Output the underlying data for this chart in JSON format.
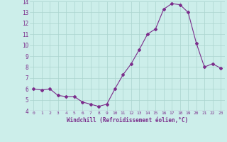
{
  "x": [
    0,
    1,
    2,
    3,
    4,
    5,
    6,
    7,
    8,
    9,
    10,
    11,
    12,
    13,
    14,
    15,
    16,
    17,
    18,
    19,
    20,
    21,
    22,
    23
  ],
  "y": [
    6.0,
    5.9,
    6.0,
    5.4,
    5.3,
    5.3,
    4.8,
    4.6,
    4.4,
    4.6,
    6.0,
    7.3,
    8.3,
    9.6,
    11.0,
    11.5,
    13.3,
    13.8,
    13.7,
    13.0,
    10.2,
    8.0,
    8.3,
    7.9
  ],
  "line_color": "#7B2D8B",
  "marker": "D",
  "marker_size": 2,
  "bg_color": "#cceeea",
  "grid_color": "#aad4ce",
  "xlabel": "Windchill (Refroidissement éolien,°C)",
  "xlabel_color": "#7B2D8B",
  "tick_color": "#7B2D8B",
  "ylim": [
    4,
    14
  ],
  "xlim": [
    -0.5,
    23.5
  ],
  "yticks": [
    4,
    5,
    6,
    7,
    8,
    9,
    10,
    11,
    12,
    13,
    14
  ],
  "xticks": [
    0,
    1,
    2,
    3,
    4,
    5,
    6,
    7,
    8,
    9,
    10,
    11,
    12,
    13,
    14,
    15,
    16,
    17,
    18,
    19,
    20,
    21,
    22,
    23
  ]
}
